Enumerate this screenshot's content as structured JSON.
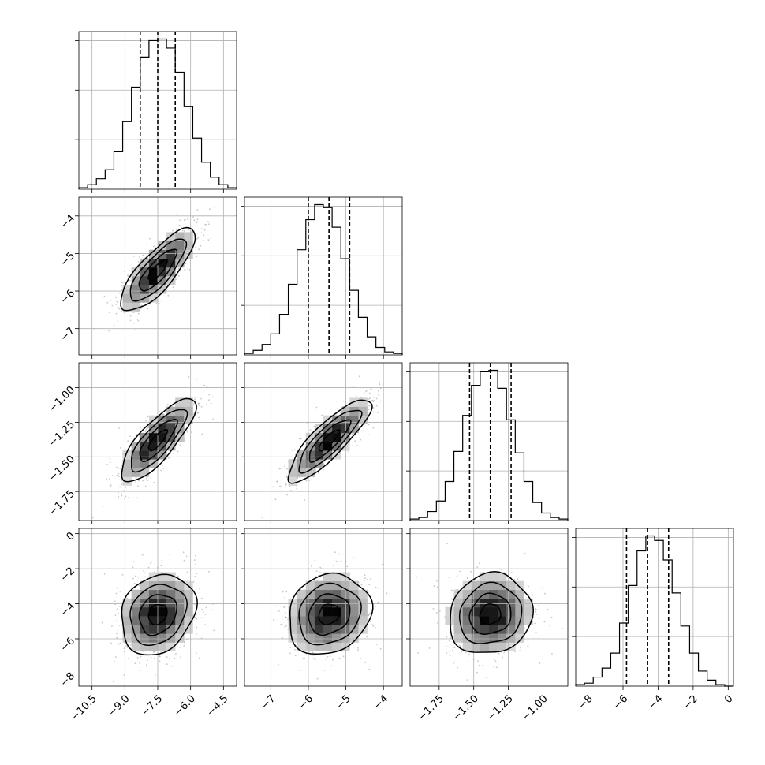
{
  "chart_data": {
    "type": "corner",
    "title": "",
    "grid": true,
    "parameters": [
      {
        "name": "",
        "range": [
          -11.1,
          -3.9
        ],
        "ticks": [
          -10.5,
          -9.0,
          -7.5,
          -6.0,
          -4.5
        ],
        "tick_labels": [
          "−10.5",
          "−9.0",
          "−7.5",
          "−6.0",
          "−4.5"
        ],
        "quantiles": [
          -8.3,
          -7.5,
          -6.7
        ],
        "mean": -7.5,
        "sd": 0.85
      },
      {
        "name": "",
        "range": [
          -7.7,
          -3.5
        ],
        "ticks": [
          -7,
          -6,
          -5,
          -4
        ],
        "tick_labels": [
          "−7",
          "−6",
          "−5",
          "−4"
        ],
        "quantiles": [
          -6.0,
          -5.45,
          -4.9
        ],
        "mean": -5.45,
        "sd": 0.55
      },
      {
        "name": "",
        "range": [
          -1.96,
          -0.82
        ],
        "ticks": [
          -1.75,
          -1.5,
          -1.25,
          -1.0
        ],
        "tick_labels": [
          "−1.75",
          "−1.50",
          "−1.25",
          "−1.00"
        ],
        "tick_labels_y": [
          "−1.75",
          "−1.50",
          "−1.25",
          "−1.00"
        ],
        "quantiles": [
          -1.53,
          -1.38,
          -1.23
        ],
        "mean": -1.38,
        "sd": 0.15
      },
      {
        "name": "",
        "range": [
          -8.7,
          0.3
        ],
        "ticks": [
          -8,
          -6,
          -4,
          -2,
          0
        ],
        "tick_labels": [
          "−8",
          "−6",
          "−4",
          "−2",
          "0"
        ],
        "quantiles": [
          -5.8,
          -4.6,
          -3.4
        ],
        "mean": -4.6,
        "sd": 1.15
      }
    ],
    "correlations": [
      [
        1,
        0.8,
        0.8,
        0.2
      ],
      [
        0.8,
        1,
        0.85,
        0.15
      ],
      [
        0.8,
        0.85,
        1,
        0.1
      ],
      [
        0.2,
        0.15,
        0.1,
        1
      ]
    ],
    "histograms": [
      [
        0.01,
        0.03,
        0.07,
        0.13,
        0.25,
        0.45,
        0.68,
        0.88,
        0.99,
        1.0,
        0.94,
        0.78,
        0.55,
        0.34,
        0.18,
        0.08,
        0.03,
        0.01
      ],
      [
        0.01,
        0.03,
        0.07,
        0.14,
        0.27,
        0.47,
        0.7,
        0.9,
        1.0,
        0.98,
        0.85,
        0.64,
        0.43,
        0.25,
        0.12,
        0.05,
        0.02,
        0.01
      ],
      [
        0.01,
        0.02,
        0.06,
        0.13,
        0.26,
        0.46,
        0.7,
        0.9,
        0.99,
        1.0,
        0.88,
        0.67,
        0.45,
        0.26,
        0.12,
        0.05,
        0.02,
        0.01
      ],
      [
        0.01,
        0.02,
        0.06,
        0.12,
        0.22,
        0.42,
        0.67,
        0.9,
        1.0,
        0.97,
        0.84,
        0.62,
        0.4,
        0.22,
        0.1,
        0.04,
        0.01,
        0.0
      ]
    ],
    "contour_levels_sigma": [
      0.5,
      1.0,
      1.5,
      2.0
    ]
  }
}
